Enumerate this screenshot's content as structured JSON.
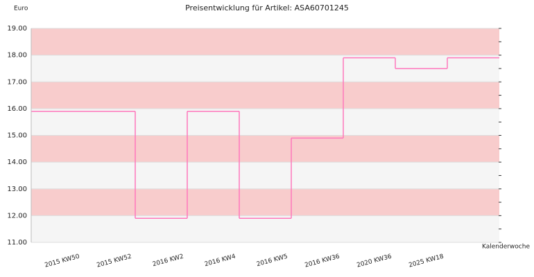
{
  "chart_data": {
    "type": "step",
    "title": "Preisentwicklung für Artikel: ASA60701245",
    "y_label": "Euro",
    "x_label": "Kalenderwoche",
    "categories": [
      "2015 KW50",
      "2015 KW52",
      "2016 KW2",
      "2016 KW4",
      "2016 KW5",
      "2016 KW36",
      "2020 KW36",
      "2025 KW18",
      null
    ],
    "values": [
      15.9,
      15.9,
      11.9,
      15.9,
      11.9,
      14.9,
      17.9,
      17.5,
      17.9
    ],
    "color": "#ff77bb",
    "band_colors": [
      "#f5f5f5",
      "#f8cccc"
    ],
    "ylim": [
      11,
      19
    ],
    "yticks": [
      {
        "value": 11,
        "label": "11.00"
      },
      {
        "value": 12,
        "label": "12.00"
      },
      {
        "value": 13,
        "label": "13.00"
      },
      {
        "value": 14,
        "label": "14.00"
      },
      {
        "value": 15,
        "label": "15.00"
      },
      {
        "value": 16,
        "label": "16.00"
      },
      {
        "value": 17,
        "label": "17.00"
      },
      {
        "value": 18,
        "label": "18.00"
      },
      {
        "value": 19,
        "label": "19.00"
      }
    ]
  }
}
